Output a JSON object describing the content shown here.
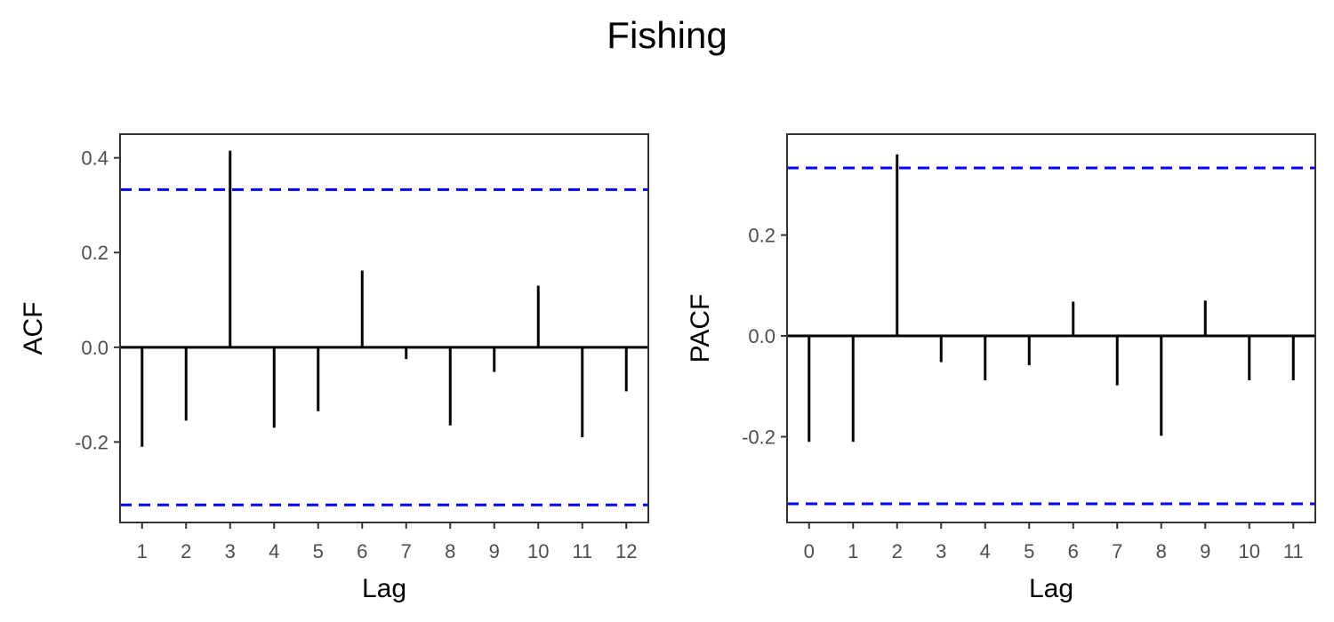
{
  "figure": {
    "title": "Fishing"
  },
  "colors": {
    "bars": "#000000",
    "confidence_band": "#0000ff",
    "panel_border": "#333333",
    "tick_text": "#4d4d4d"
  },
  "chart_data": [
    {
      "type": "bar",
      "subtype": "correlogram",
      "title": "",
      "xlabel": "Lag",
      "ylabel": "ACF",
      "x": [
        1,
        2,
        3,
        4,
        5,
        6,
        7,
        8,
        9,
        10,
        11,
        12
      ],
      "values": [
        -0.21,
        -0.155,
        0.415,
        -0.17,
        -0.135,
        0.162,
        -0.025,
        -0.165,
        -0.052,
        0.13,
        -0.19,
        -0.093
      ],
      "confidence_bounds": [
        0.333,
        -0.333
      ],
      "yticks": [
        -0.2,
        0.0,
        0.2,
        0.4
      ],
      "ytick_labels": [
        "-0.2",
        "0.0",
        "0.2",
        "0.4"
      ],
      "xlim": [
        0.5,
        12.5
      ],
      "ylim": [
        -0.37,
        0.45
      ],
      "grid": false
    },
    {
      "type": "bar",
      "subtype": "correlogram",
      "title": "",
      "xlabel": "Lag",
      "ylabel": "PACF",
      "x": [
        0,
        1,
        2,
        3,
        4,
        5,
        6,
        7,
        8,
        9,
        10,
        11
      ],
      "values": [
        -0.21,
        -0.21,
        0.36,
        -0.052,
        -0.088,
        -0.058,
        0.068,
        -0.098,
        -0.198,
        0.07,
        -0.088,
        -0.088
      ],
      "confidence_bounds": [
        0.333,
        -0.333
      ],
      "yticks": [
        -0.2,
        0.0,
        0.2
      ],
      "ytick_labels": [
        "-0.2",
        "0.0",
        "0.2"
      ],
      "xlim": [
        -0.5,
        11.5
      ],
      "ylim": [
        -0.37,
        0.4
      ],
      "grid": false
    }
  ]
}
